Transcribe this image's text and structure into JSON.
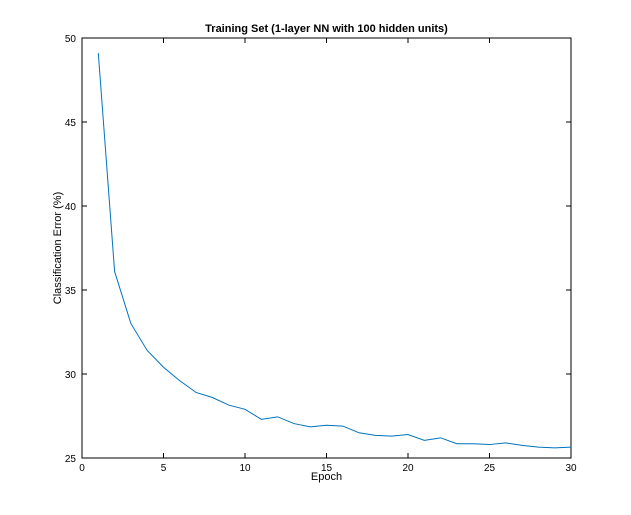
{
  "chart_data": {
    "type": "line",
    "title": "Training Set (1-layer NN with 100 hidden units)",
    "xlabel": "Epoch",
    "ylabel": "Classification Error (%)",
    "xlim": [
      0,
      30
    ],
    "ylim": [
      25,
      50
    ],
    "xticks": [
      "0",
      "5",
      "10",
      "15",
      "20",
      "25",
      "30"
    ],
    "yticks": [
      "25",
      "30",
      "35",
      "40",
      "45",
      "50"
    ],
    "grid": false,
    "line_color": "#0072bd",
    "series": [
      {
        "x": [
          1,
          2,
          3,
          4,
          5,
          6,
          7,
          8,
          9,
          10,
          11,
          12,
          13,
          14,
          15,
          16,
          17,
          18,
          19,
          20,
          21,
          22,
          23,
          24,
          25,
          26,
          27,
          28,
          29,
          30
        ],
        "values": [
          49.1,
          36.1,
          33.0,
          31.4,
          30.4,
          29.6,
          28.9,
          28.6,
          28.15,
          27.9,
          27.3,
          27.45,
          27.05,
          26.85,
          26.95,
          26.9,
          26.5,
          26.35,
          26.3,
          26.4,
          26.05,
          26.2,
          25.85,
          25.85,
          25.8,
          25.9,
          25.75,
          25.65,
          25.6,
          25.65
        ]
      }
    ]
  }
}
